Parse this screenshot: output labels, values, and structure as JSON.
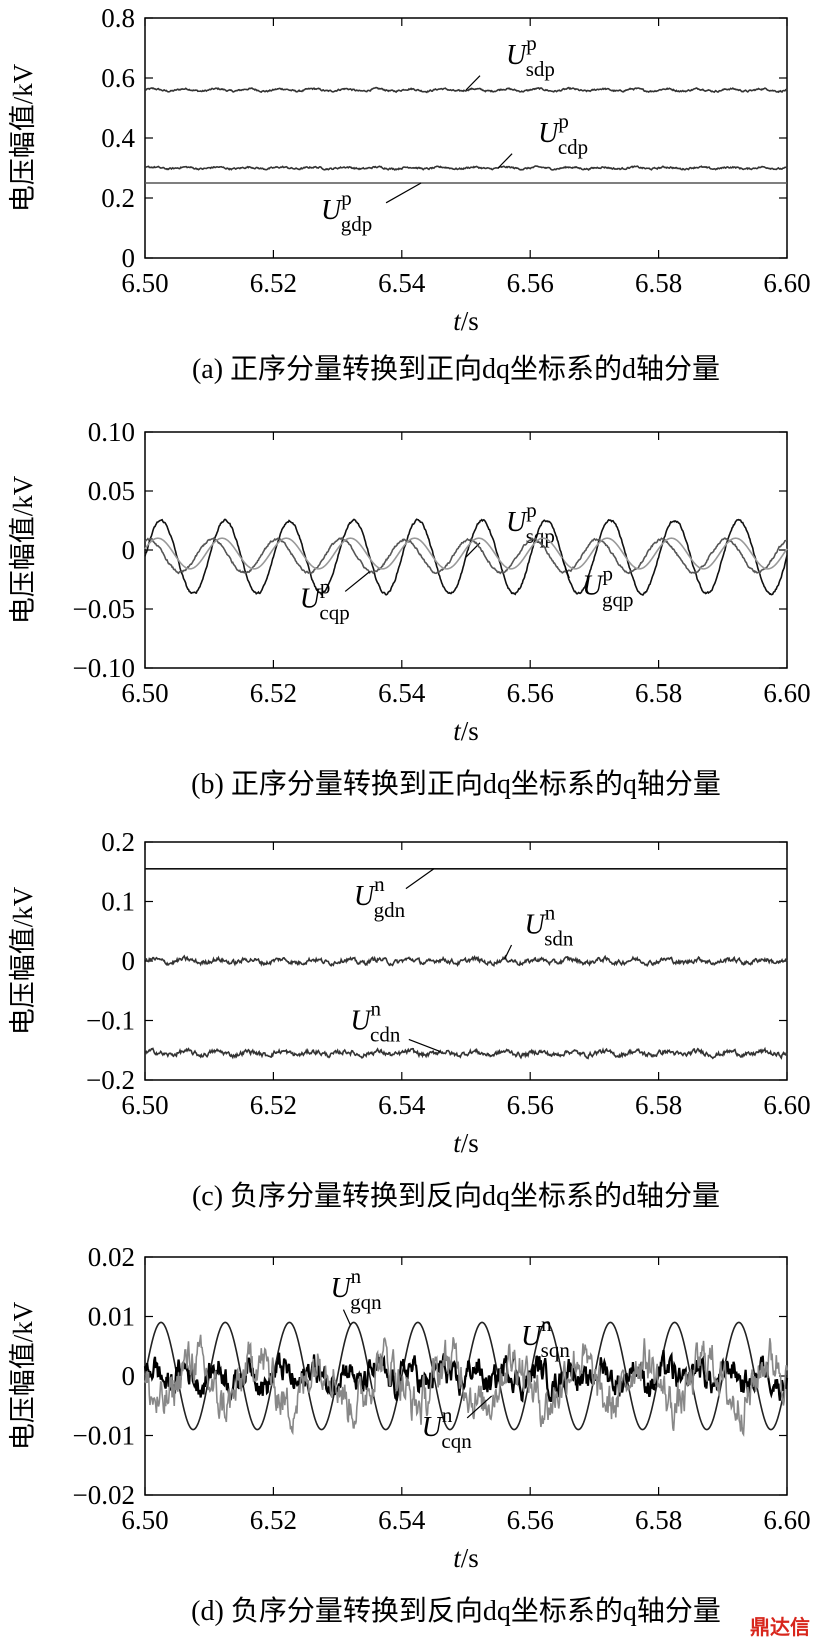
{
  "watermark": "鼎达信",
  "chart_data": [
    {
      "type": "line",
      "panel": "a",
      "caption": "(a) 正序分量转换到正向dq坐标系的d轴分量",
      "xlabel": "t/s",
      "ylabel": "电压幅值/kV",
      "xlim": [
        6.5,
        6.6
      ],
      "ylim": [
        0,
        0.8
      ],
      "xticks": [
        "6.50",
        "6.52",
        "6.54",
        "6.56",
        "6.58",
        "6.60"
      ],
      "yticks": [
        "0",
        "0.2",
        "0.4",
        "0.6",
        "0.8"
      ],
      "grid": false,
      "series": [
        {
          "name": "U_sdp",
          "label_main": "U",
          "label_sub": "sdp",
          "label_sup": "p",
          "mean": 0.56,
          "ripple_amp": 0.004,
          "ripple_period": 0.005,
          "noise": 0.003,
          "color": "#333333"
        },
        {
          "name": "U_cdp",
          "label_main": "U",
          "label_sub": "cdp",
          "label_sup": "p",
          "mean": 0.3,
          "ripple_amp": 0.003,
          "ripple_period": 0.005,
          "noise": 0.003,
          "color": "#333333"
        },
        {
          "name": "U_gdp",
          "label_main": "U",
          "label_sub": "gdp",
          "label_sup": "p",
          "mean": 0.25,
          "ripple_amp": 0,
          "ripple_period": 0.01,
          "noise": 0,
          "color": "#555555"
        }
      ]
    },
    {
      "type": "line",
      "panel": "b",
      "caption": "(b) 正序分量转换到正向dq坐标系的q轴分量",
      "xlabel": "t/s",
      "ylabel": "电压幅值/kV",
      "xlim": [
        6.5,
        6.6
      ],
      "ylim": [
        -0.1,
        0.1
      ],
      "xticks": [
        "6.50",
        "6.52",
        "6.54",
        "6.56",
        "6.58",
        "6.60"
      ],
      "yticks": [
        "−0.10",
        "−0.05",
        "0",
        "0.05",
        "0.10"
      ],
      "grid": false,
      "series": [
        {
          "name": "U_sqp",
          "label_main": "U",
          "label_sub": "sqp",
          "label_sup": "p",
          "mean": -0.006,
          "ripple_amp": 0.031,
          "ripple_period": 0.01,
          "phase": 0.0,
          "noise": 0.001,
          "color": "#111111"
        },
        {
          "name": "U_cqp",
          "label_main": "U",
          "label_sub": "cqp",
          "label_sup": "p",
          "mean": -0.005,
          "ripple_amp": 0.014,
          "ripple_period": 0.01,
          "phase": 0.2,
          "noise": 0.001,
          "color": "#555555"
        },
        {
          "name": "U_gqp",
          "label_main": "U",
          "label_sub": "gqp",
          "label_sup": "p",
          "mean": -0.003,
          "ripple_amp": 0.013,
          "ripple_period": 0.01,
          "phase": 0.05,
          "noise": 0,
          "color": "#999999"
        }
      ]
    },
    {
      "type": "line",
      "panel": "c",
      "caption": "(c) 负序分量转换到反向dq坐标系的d轴分量",
      "xlabel": "t/s",
      "ylabel": "电压幅值/kV",
      "xlim": [
        6.5,
        6.6
      ],
      "ylim": [
        -0.2,
        0.2
      ],
      "xticks": [
        "6.50",
        "6.52",
        "6.54",
        "6.56",
        "6.58",
        "6.60"
      ],
      "yticks": [
        "−0.2",
        "−0.1",
        "0",
        "0.1",
        "0.2"
      ],
      "grid": false,
      "series": [
        {
          "name": "U_gdn",
          "label_main": "U",
          "label_sub": "gdn",
          "label_sup": "n",
          "mean": 0.155,
          "ripple_amp": 0,
          "ripple_period": 0.01,
          "noise": 0,
          "color": "#111111"
        },
        {
          "name": "U_sdn",
          "label_main": "U",
          "label_sub": "sdn",
          "label_sup": "n",
          "mean": 0.0,
          "ripple_amp": 0.003,
          "ripple_period": 0.005,
          "noise": 0.004,
          "color": "#333333"
        },
        {
          "name": "U_cdn",
          "label_main": "U",
          "label_sub": "cdn",
          "label_sup": "n",
          "mean": -0.155,
          "ripple_amp": 0.003,
          "ripple_period": 0.005,
          "noise": 0.004,
          "color": "#333333"
        }
      ]
    },
    {
      "type": "line",
      "panel": "d",
      "caption": "(d) 负序分量转换到反向dq坐标系的q轴分量",
      "xlabel": "t/s",
      "ylabel": "电压幅值/kV",
      "xlim": [
        6.5,
        6.6
      ],
      "ylim": [
        -0.02,
        0.02
      ],
      "xticks": [
        "6.50",
        "6.52",
        "6.54",
        "6.56",
        "6.58",
        "6.60"
      ],
      "yticks": [
        "−0.02",
        "−0.01",
        "0",
        "0.01",
        "0.02"
      ],
      "grid": false,
      "series": [
        {
          "name": "U_gqn",
          "label_main": "U",
          "label_sub": "gqn",
          "label_sup": "n",
          "mean": 0.0,
          "ripple_amp": 0.009,
          "ripple_period": 0.01,
          "phase": 0.0,
          "noise": 0,
          "color": "#222222"
        },
        {
          "name": "U_sqn",
          "label_main": "U",
          "label_sub": "sqn",
          "label_sup": "n",
          "mean": 0.0,
          "ripple_amp": 0.0015,
          "ripple_period": 0.005,
          "noise": 0.0022,
          "color": "#000000"
        },
        {
          "name": "U_cqn",
          "label_main": "U",
          "label_sub": "cqn",
          "label_sup": "n",
          "mean": -0.001,
          "ripple_amp": 0.004,
          "ripple_period": 0.01,
          "phase": 0.5,
          "noise": 0.0035,
          "color": "#888888"
        }
      ]
    }
  ]
}
